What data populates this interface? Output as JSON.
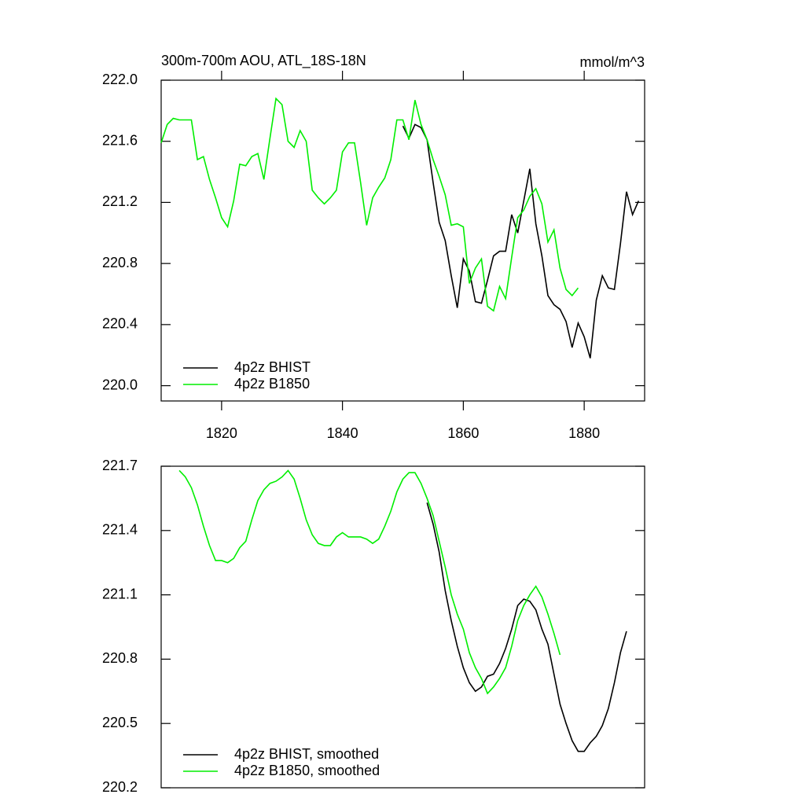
{
  "chart_data": [
    {
      "type": "line",
      "title": "300m-700m AOU, ATL_18S-18N",
      "units": "mmol/m^3",
      "xlim": [
        1810,
        1890
      ],
      "xticks": [
        1820,
        1840,
        1860,
        1880
      ],
      "ylim": [
        219.9,
        222.0
      ],
      "yticks": [
        {
          "value": 220,
          "label": "220.0"
        },
        {
          "value": 220.4,
          "label": "220.4"
        },
        220.8,
        221.2,
        221.6,
        {
          "value": 222,
          "label": "222.0"
        }
      ],
      "legend": "lower left",
      "series": [
        {
          "name": "4p2z BHIST",
          "color": "#000000",
          "x": [
            1850,
            1851,
            1852,
            1853,
            1854,
            1855,
            1856,
            1857,
            1858,
            1859,
            1860,
            1861,
            1862,
            1863,
            1864,
            1865,
            1866,
            1867,
            1868,
            1869,
            1870,
            1871,
            1872,
            1873,
            1874,
            1875,
            1876,
            1877,
            1878,
            1879,
            1880,
            1881,
            1882,
            1883,
            1884,
            1885,
            1886,
            1887,
            1888,
            1889
          ],
          "values": [
            221.7,
            221.62,
            221.71,
            221.69,
            221.61,
            221.33,
            221.07,
            220.95,
            220.72,
            220.51,
            220.83,
            220.75,
            220.55,
            220.54,
            220.69,
            220.85,
            220.88,
            220.88,
            221.12,
            221.0,
            221.21,
            221.42,
            221.06,
            220.85,
            220.59,
            220.53,
            220.5,
            220.42,
            220.25,
            220.41,
            220.32,
            220.18,
            220.56,
            220.72,
            220.64,
            220.63,
            220.93,
            221.27,
            221.12,
            221.21
          ]
        },
        {
          "name": "4p2z B1850",
          "color": "#00ee00",
          "x": [
            1810,
            1811,
            1812,
            1813,
            1814,
            1815,
            1816,
            1817,
            1818,
            1819,
            1820,
            1821,
            1822,
            1823,
            1824,
            1825,
            1826,
            1827,
            1828,
            1829,
            1830,
            1831,
            1832,
            1833,
            1834,
            1835,
            1836,
            1837,
            1838,
            1839,
            1840,
            1841,
            1842,
            1843,
            1844,
            1845,
            1846,
            1847,
            1848,
            1849,
            1850,
            1851,
            1852,
            1853,
            1854,
            1855,
            1856,
            1857,
            1858,
            1859,
            1860,
            1861,
            1862,
            1863,
            1864,
            1865,
            1866,
            1867,
            1868,
            1869,
            1870,
            1871,
            1872,
            1873,
            1874,
            1875,
            1876,
            1877,
            1878,
            1879
          ],
          "values": [
            221.59,
            221.71,
            221.75,
            221.74,
            221.74,
            221.74,
            221.48,
            221.5,
            221.35,
            221.23,
            221.1,
            221.04,
            221.21,
            221.45,
            221.44,
            221.5,
            221.52,
            221.35,
            221.62,
            221.88,
            221.84,
            221.6,
            221.56,
            221.67,
            221.6,
            221.28,
            221.23,
            221.19,
            221.23,
            221.28,
            221.53,
            221.59,
            221.59,
            221.33,
            221.05,
            221.23,
            221.3,
            221.36,
            221.48,
            221.74,
            221.74,
            221.61,
            221.87,
            221.71,
            221.61,
            221.48,
            221.37,
            221.25,
            221.05,
            221.06,
            221.04,
            220.67,
            220.77,
            220.83,
            220.52,
            220.49,
            220.65,
            220.57,
            220.84,
            221.1,
            221.15,
            221.24,
            221.29,
            221.19,
            220.94,
            221.02,
            220.77,
            220.63,
            220.59,
            220.64
          ]
        }
      ]
    },
    {
      "type": "line",
      "xlim": [
        1810,
        1890
      ],
      "ylim": [
        220.2,
        221.7
      ],
      "yticks": [
        220.2,
        220.5,
        220.8,
        221.1,
        221.4,
        221.7
      ],
      "legend": "lower left",
      "series": [
        {
          "name": "4p2z BHIST, smoothed",
          "color": "#000000",
          "x": [
            1854,
            1855,
            1856,
            1857,
            1858,
            1859,
            1860,
            1861,
            1862,
            1863,
            1864,
            1865,
            1866,
            1867,
            1868,
            1869,
            1870,
            1871,
            1872,
            1873,
            1874,
            1875,
            1876,
            1877,
            1878,
            1879,
            1880,
            1881,
            1882,
            1883,
            1884,
            1885,
            1886,
            1887
          ],
          "values": [
            221.53,
            221.43,
            221.3,
            221.12,
            220.98,
            220.86,
            220.76,
            220.69,
            220.65,
            220.67,
            220.72,
            220.73,
            220.78,
            220.85,
            220.94,
            221.05,
            221.08,
            221.07,
            221.03,
            220.94,
            220.87,
            220.73,
            220.59,
            220.5,
            220.42,
            220.37,
            220.37,
            220.41,
            220.44,
            220.49,
            220.57,
            220.69,
            220.83,
            220.93
          ]
        },
        {
          "name": "4p2z B1850, smoothed",
          "color": "#00ee00",
          "x": [
            1813,
            1814,
            1815,
            1816,
            1817,
            1818,
            1819,
            1820,
            1821,
            1822,
            1823,
            1824,
            1825,
            1826,
            1827,
            1828,
            1829,
            1830,
            1831,
            1832,
            1833,
            1834,
            1835,
            1836,
            1837,
            1838,
            1839,
            1840,
            1841,
            1842,
            1843,
            1844,
            1845,
            1846,
            1847,
            1848,
            1849,
            1850,
            1851,
            1852,
            1853,
            1854,
            1855,
            1856,
            1857,
            1858,
            1859,
            1860,
            1861,
            1862,
            1863,
            1864,
            1865,
            1866,
            1867,
            1868,
            1869,
            1870,
            1871,
            1872,
            1873,
            1874,
            1875,
            1876
          ],
          "values": [
            221.68,
            221.65,
            221.6,
            221.52,
            221.42,
            221.33,
            221.26,
            221.26,
            221.25,
            221.27,
            221.32,
            221.35,
            221.45,
            221.54,
            221.59,
            221.62,
            221.63,
            221.65,
            221.68,
            221.64,
            221.55,
            221.45,
            221.38,
            221.34,
            221.33,
            221.33,
            221.37,
            221.39,
            221.37,
            221.37,
            221.37,
            221.36,
            221.34,
            221.36,
            221.42,
            221.49,
            221.58,
            221.64,
            221.67,
            221.67,
            221.62,
            221.55,
            221.47,
            221.35,
            221.23,
            221.1,
            221.01,
            220.94,
            220.83,
            220.76,
            220.71,
            220.64,
            220.67,
            220.71,
            220.76,
            220.86,
            220.98,
            221.05,
            221.1,
            221.14,
            221.09,
            221.01,
            220.92,
            220.82
          ]
        }
      ]
    }
  ]
}
